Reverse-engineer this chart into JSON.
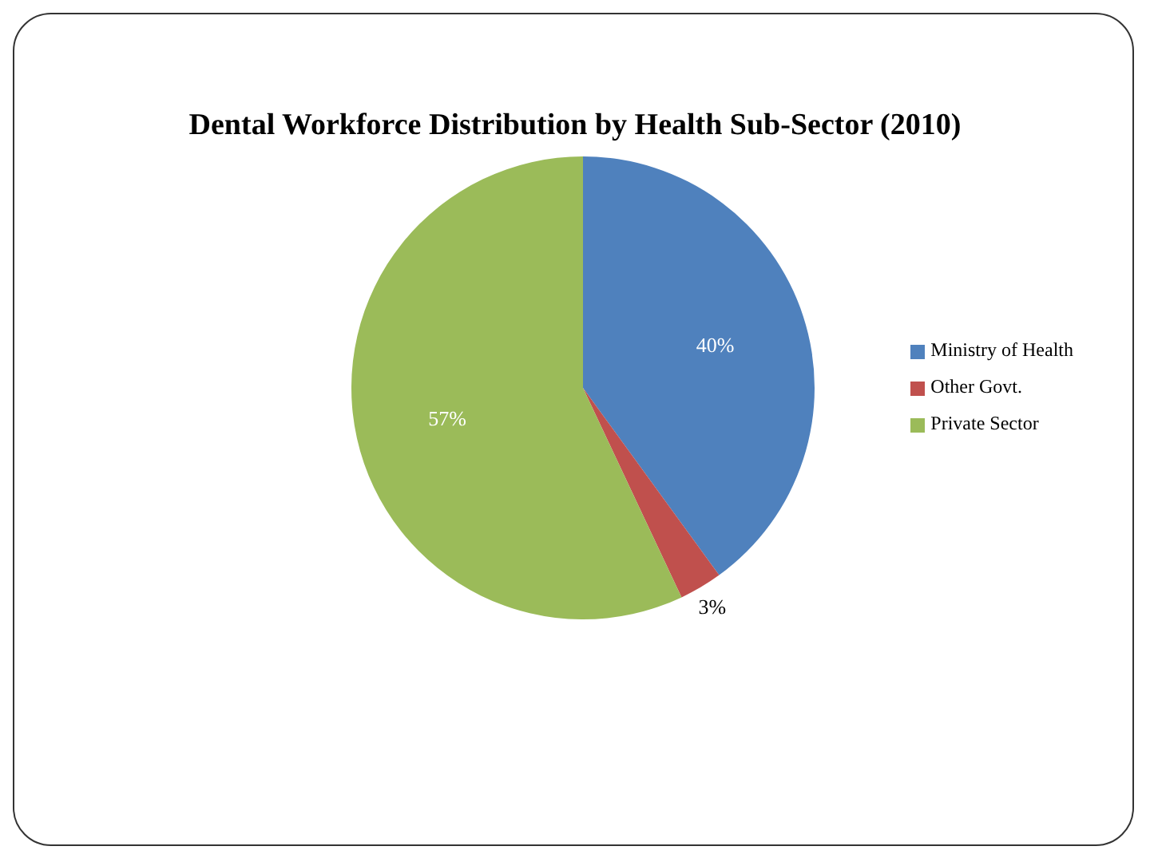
{
  "chart_data": {
    "type": "pie",
    "title": "Dental Workforce Distribution by Health Sub-Sector (2010)",
    "categories": [
      "Ministry of Health",
      "Other Govt.",
      "Private Sector"
    ],
    "values": [
      40,
      3,
      57
    ],
    "colors": [
      "#4f81bd",
      "#c0504d",
      "#9bbb59"
    ],
    "value_labels": [
      "40%",
      "3%",
      "57%"
    ],
    "legend": "right"
  }
}
